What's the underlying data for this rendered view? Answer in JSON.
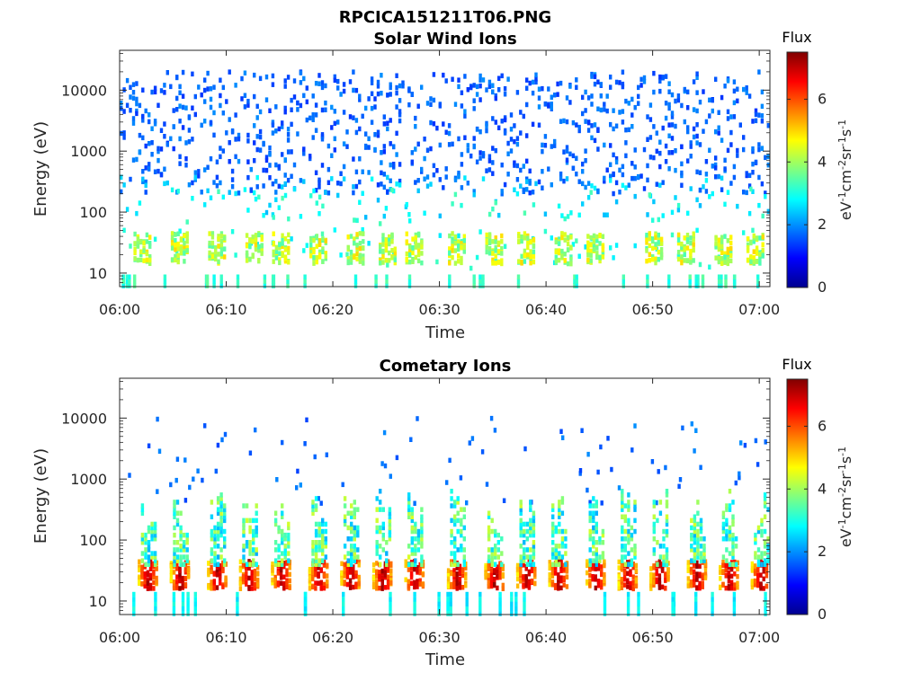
{
  "figure": {
    "title": "RPCICA151211T06.PNG"
  },
  "chart_data": [
    {
      "type": "heatmap",
      "title": "Solar Wind Ions",
      "xlabel": "Time",
      "ylabel": "Energy (eV)",
      "x_ticks": [
        "06:00",
        "06:10",
        "06:20",
        "06:30",
        "06:40",
        "06:50",
        "07:00"
      ],
      "x_range": [
        "06:00",
        "07:01"
      ],
      "y_scale": "log",
      "y_ticks": [
        "10",
        "100",
        "1000",
        "10000"
      ],
      "y_range": [
        6,
        45000
      ],
      "colorbar": {
        "label": "Flux",
        "units": "eV-1cm-2sr-1s-1",
        "units_parts": [
          "eV",
          "-1",
          "cm",
          "-2",
          "sr",
          "-1",
          "s",
          "-1"
        ],
        "range": [
          0,
          7.5
        ],
        "ticks": [
          "0",
          "2",
          "4",
          "6"
        ]
      },
      "features": {
        "bursts_minutes": [
          2,
          5.5,
          9,
          12.5,
          15,
          18.5,
          22,
          25,
          27.5,
          31.5,
          35,
          38,
          41.5,
          44.5,
          50,
          53,
          56.5,
          59.5
        ],
        "background": "sparse blue counts 200–20000 eV; cyan/green/yellow bands 15–60 eV"
      }
    },
    {
      "type": "heatmap",
      "title": "Cometary Ions",
      "xlabel": "Time",
      "ylabel": "Energy (eV)",
      "x_ticks": [
        "06:00",
        "06:10",
        "06:20",
        "06:30",
        "06:40",
        "06:50",
        "07:00"
      ],
      "x_range": [
        "06:00",
        "07:01"
      ],
      "y_scale": "log",
      "y_ticks": [
        "10",
        "100",
        "1000",
        "10000"
      ],
      "y_range": [
        6,
        45000
      ],
      "colorbar": {
        "label": "Flux",
        "units": "eV-1cm-2sr-1s-1",
        "units_parts": [
          "eV",
          "-1",
          "cm",
          "-2",
          "sr",
          "-1",
          "s",
          "-1"
        ],
        "range": [
          0,
          7.5
        ],
        "ticks": [
          "0",
          "2",
          "4",
          "6"
        ]
      },
      "features": {
        "bursts_minutes": [
          2.5,
          5.5,
          9,
          12,
          15,
          18.5,
          21.5,
          24.5,
          27.5,
          31.5,
          35,
          38,
          41,
          44.5,
          47.5,
          50.5,
          54,
          57,
          60
        ],
        "burst_peak_energy_eV": [
          15,
          45
        ],
        "burst_peak_flux": 7,
        "background": "red/orange cores at 15–45 eV with green/cyan spikes up to ~600 eV; sparse blue above"
      }
    }
  ]
}
